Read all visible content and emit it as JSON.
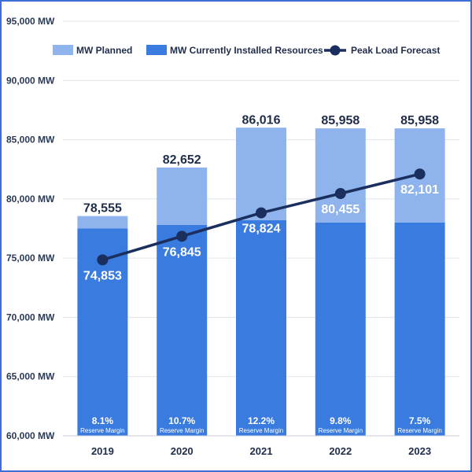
{
  "chart_data": {
    "type": "bar",
    "categories": [
      "2019",
      "2020",
      "2021",
      "2022",
      "2023"
    ],
    "series": [
      {
        "name": "MW Currently Installed Resources",
        "kind": "stacked-bar",
        "color": "#3a7be0",
        "values": [
          77500,
          77800,
          78200,
          78000,
          78000
        ]
      },
      {
        "name": "MW Planned",
        "kind": "stacked-bar",
        "color": "#8fb3ec",
        "values": [
          1055,
          4852,
          7816,
          7958,
          7958
        ]
      },
      {
        "name": "Peak Load Forecast",
        "kind": "line",
        "color": "#1a2f5e",
        "values": [
          74853,
          76845,
          78824,
          80455,
          82101
        ]
      }
    ],
    "totals": [
      "78,555",
      "82,652",
      "86,016",
      "85,958",
      "85,958"
    ],
    "line_labels": [
      "74,853",
      "76,845",
      "78,824",
      "80,455",
      "82,101"
    ],
    "reserve_margins": [
      "8.1%",
      "10.7%",
      "12.2%",
      "9.8%",
      "7.5%"
    ],
    "reserve_margin_caption": "Reserve Margin",
    "ylim": [
      60000,
      95000
    ],
    "yticks": [
      60000,
      65000,
      70000,
      75000,
      80000,
      85000,
      90000,
      95000
    ],
    "ytick_labels": [
      "60,000 MW",
      "65,000 MW",
      "70,000 MW",
      "75,000 MW",
      "80,000 MW",
      "85,000 MW",
      "90,000 MW",
      "95,000 MW"
    ],
    "legend": [
      "MW Planned",
      "MW Currently Installed Resources",
      "Peak Load Forecast"
    ],
    "legend_position": "top",
    "grid": "horizontal",
    "title": "",
    "xlabel": "",
    "ylabel": ""
  }
}
